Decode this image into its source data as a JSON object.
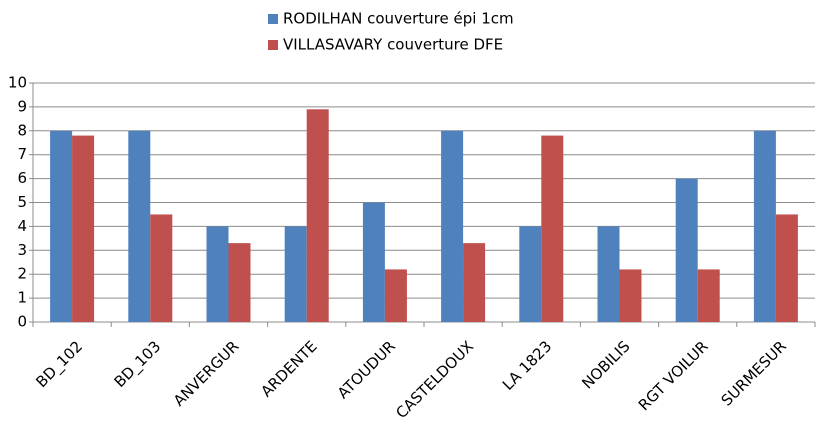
{
  "chart_data": {
    "type": "bar",
    "categories": [
      "BD_102",
      "BD_103",
      "ANVERGUR",
      "ARDENTE",
      "ATOUDUR",
      "CASTELDOUX",
      "LA 1823",
      "NOBILIS",
      "RGT VOILUR",
      "SURMESUR"
    ],
    "series": [
      {
        "name": "RODILHAN couverture épi 1cm",
        "color": "#4f81bd",
        "values": [
          8,
          8,
          4,
          4,
          5,
          8,
          4,
          4,
          6,
          8
        ]
      },
      {
        "name": "VILLASAVARY couverture DFE",
        "color": "#c0504d",
        "values": [
          7.8,
          4.5,
          3.3,
          8.9,
          2.2,
          3.3,
          7.8,
          2.2,
          2.2,
          4.5
        ]
      }
    ],
    "ylim": [
      0,
      10
    ],
    "yticks": [
      0,
      1,
      2,
      3,
      4,
      5,
      6,
      7,
      8,
      9,
      10
    ],
    "grid": true,
    "legend": "top"
  }
}
